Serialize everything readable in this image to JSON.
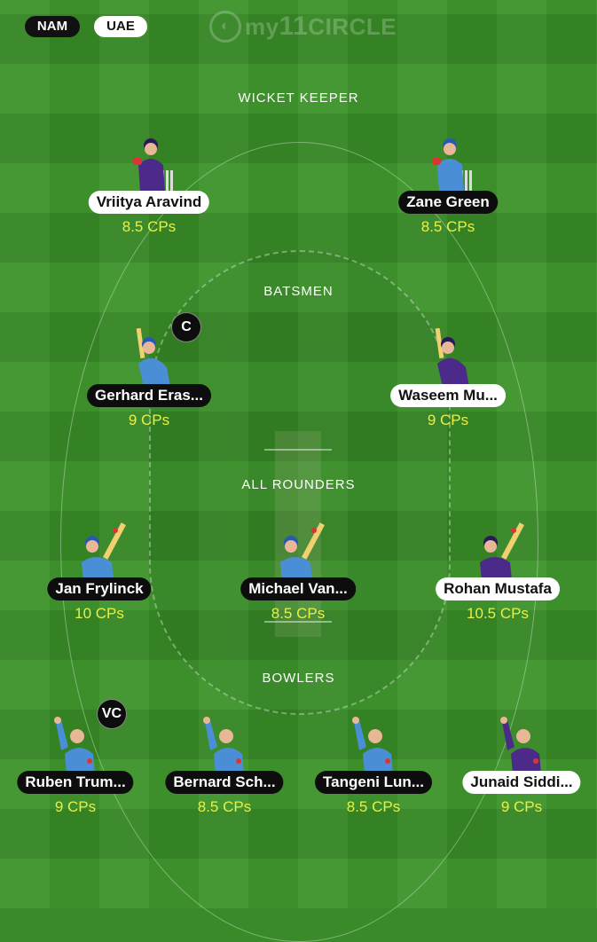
{
  "teams": {
    "left": "NAM",
    "right": "UAE"
  },
  "logo": {
    "prefix": "my",
    "number": "11",
    "suffix": "CIRCLE"
  },
  "sections": {
    "wicket_keeper": "WICKET KEEPER",
    "batsmen": "BATSMEN",
    "all_rounders": "ALL ROUNDERS",
    "bowlers": "BOWLERS"
  },
  "colors": {
    "nam_kit": "#4a8fd6",
    "uae_kit": "#4b2a8a",
    "credits_text": "#e6f04a"
  },
  "players": {
    "wk1": {
      "name": "Vriitya Aravind",
      "cps": "8.5 CPs",
      "team": "UAE",
      "icon": "wicket-keeper-icon"
    },
    "wk2": {
      "name": "Zane Green",
      "cps": "8.5 CPs",
      "team": "NAM",
      "icon": "wicket-keeper-icon"
    },
    "bat1": {
      "name": "Gerhard Eras...",
      "cps": "9 CPs",
      "team": "NAM",
      "icon": "batsman-icon",
      "role": "C"
    },
    "bat2": {
      "name": "Waseem Mu...",
      "cps": "9 CPs",
      "team": "UAE",
      "icon": "batsman-icon"
    },
    "ar1": {
      "name": "Jan Frylinck",
      "cps": "10 CPs",
      "team": "NAM",
      "icon": "all-rounder-icon"
    },
    "ar2": {
      "name": "Michael Van...",
      "cps": "8.5 CPs",
      "team": "NAM",
      "icon": "all-rounder-icon"
    },
    "ar3": {
      "name": "Rohan Mustafa",
      "cps": "10.5 CPs",
      "team": "UAE",
      "icon": "all-rounder-icon"
    },
    "bowl1": {
      "name": "Ruben Trum...",
      "cps": "9 CPs",
      "team": "NAM",
      "icon": "bowler-icon",
      "role": "VC"
    },
    "bowl2": {
      "name": "Bernard Sch...",
      "cps": "8.5 CPs",
      "team": "NAM",
      "icon": "bowler-icon"
    },
    "bowl3": {
      "name": "Tangeni Lun...",
      "cps": "8.5 CPs",
      "team": "NAM",
      "icon": "bowler-icon"
    },
    "bowl4": {
      "name": "Junaid Siddi...",
      "cps": "9 CPs",
      "team": "UAE",
      "icon": "bowler-icon"
    }
  }
}
